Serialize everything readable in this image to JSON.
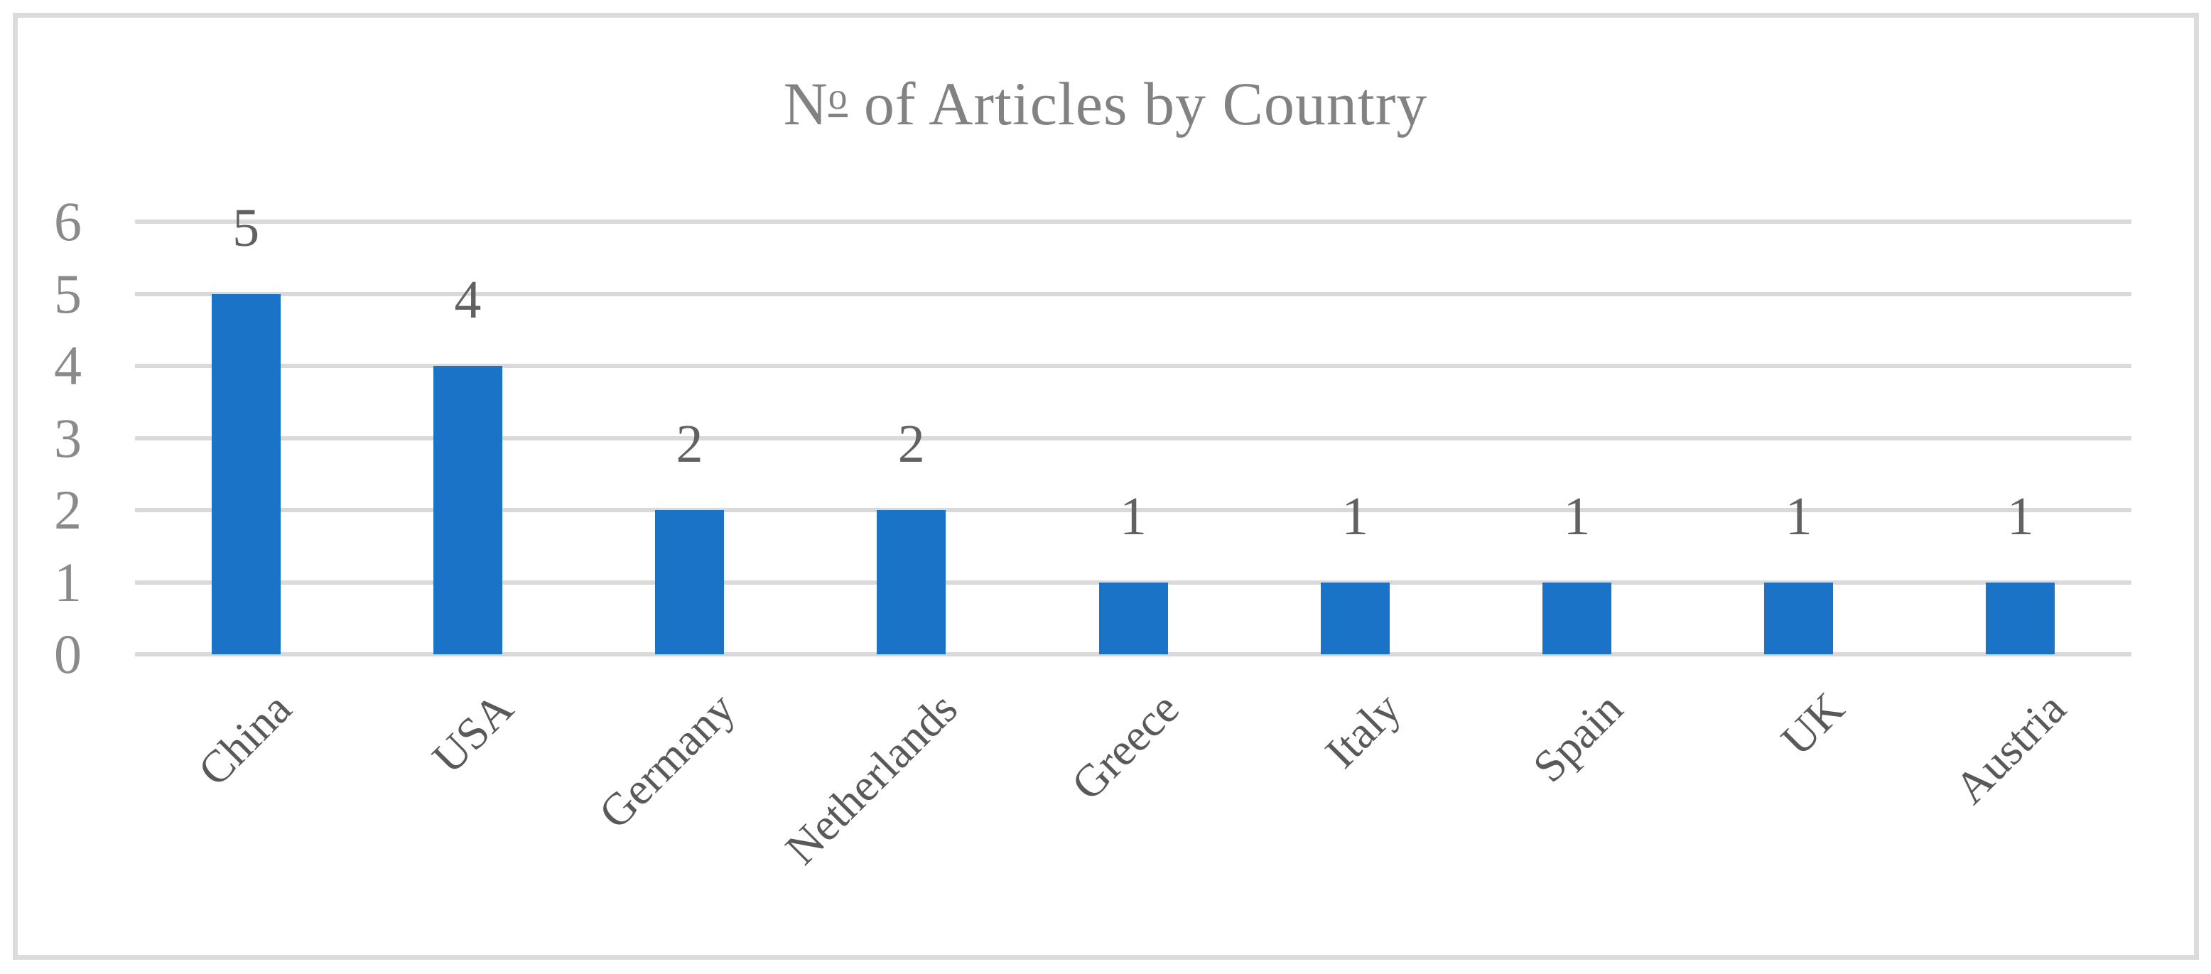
{
  "chart_data": {
    "type": "bar",
    "title": {
      "full": "Nº of Articles by Country",
      "prefix": "N",
      "ordinal": "o",
      "rest": " of Articles by Country"
    },
    "categories": [
      "China",
      "USA",
      "Germany",
      "Netherlands",
      "Greece",
      "Italy",
      "Spain",
      "UK",
      "Austria"
    ],
    "values": [
      5,
      4,
      2,
      2,
      1,
      1,
      1,
      1,
      1
    ],
    "data_labels": [
      "5",
      "4",
      "2",
      "2",
      "1",
      "1",
      "1",
      "1",
      "1"
    ],
    "xlabel": "",
    "ylabel": "",
    "ylim": [
      0,
      6
    ],
    "yticks": [
      "0",
      "1",
      "2",
      "3",
      "4",
      "5",
      "6"
    ],
    "grid": true,
    "legend_position": "none",
    "colors": {
      "bar": "#1b73c8",
      "gridline": "#d9d9d9",
      "figure_border": "#dbdbdb",
      "title_text": "#828282",
      "y_tick_text": "#8a8a8a",
      "x_tick_text": "#595959",
      "value_label_text": "#616161",
      "background": "#ffffff"
    }
  }
}
